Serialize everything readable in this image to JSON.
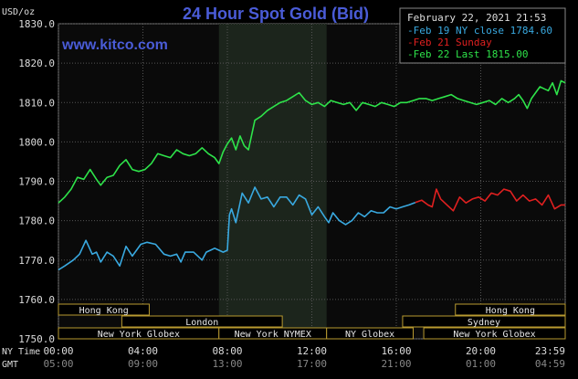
{
  "chart_data": {
    "type": "line",
    "title": "24 Hour Spot Gold (Bid)",
    "date_time": "February 22, 2021 21:53",
    "website": "www.kitco.com",
    "y_unit": "USD/oz",
    "ylim": [
      1750,
      1830
    ],
    "y_ticks": [
      "1830.0",
      "1820.0",
      "1810.0",
      "1800.0",
      "1790.0",
      "1780.0",
      "1770.0",
      "1760.0",
      "1750.0"
    ],
    "x_ticks_ny": [
      "00:00",
      "04:00",
      "08:00",
      "12:00",
      "16:00",
      "20:00",
      "23:59"
    ],
    "x_ticks_gmt": [
      "05:00",
      "09:00",
      "13:00",
      "17:00",
      "21:00",
      "01:00",
      "04:59"
    ],
    "x_row_labels": {
      "ny": "NY Time",
      "gmt": "GMT"
    },
    "grid": true,
    "highlight_hours": [
      7.6,
      12.7
    ],
    "legend_placement": "top-right",
    "legend": [
      {
        "name": "Feb 19 NY close 1784.60",
        "color": "#39a9e0"
      },
      {
        "name": "Feb 21 Sunday",
        "color": "#e02020"
      },
      {
        "name": "Feb 22 Last 1815.00",
        "color": "#2ee34a"
      }
    ],
    "market_sessions": [
      {
        "name": "Hong Kong",
        "row": 0,
        "start": 0.0,
        "end": 4.3
      },
      {
        "name": "Hong Kong",
        "row": 0,
        "start": 18.8,
        "end": 24.0
      },
      {
        "name": "London",
        "row": 1,
        "start": 3.0,
        "end": 10.6
      },
      {
        "name": "Sydney",
        "row": 1,
        "start": 16.3,
        "end": 24.0
      },
      {
        "name": "New York Globex",
        "row": 2,
        "start": 0.0,
        "end": 7.6
      },
      {
        "name": "New York NYMEX",
        "row": 2,
        "start": 7.6,
        "end": 12.7
      },
      {
        "name": "NY Globex",
        "row": 2,
        "start": 12.7,
        "end": 16.8
      },
      {
        "name": "New York Globex",
        "row": 2,
        "start": 17.3,
        "end": 24.0
      }
    ],
    "series": [
      {
        "name": "Feb 19 NY close 1784.60",
        "color": "#39a9e0",
        "x": [
          0.0,
          0.3,
          0.7,
          1.0,
          1.3,
          1.6,
          1.8,
          2.0,
          2.3,
          2.6,
          2.9,
          3.2,
          3.5,
          3.9,
          4.2,
          4.6,
          5.0,
          5.3,
          5.6,
          5.8,
          6.0,
          6.4,
          6.8,
          7.0,
          7.2,
          7.4,
          7.6,
          7.8,
          8.0,
          8.1,
          8.2,
          8.4,
          8.7,
          9.0,
          9.3,
          9.6,
          9.9,
          10.2,
          10.5,
          10.8,
          11.1,
          11.4,
          11.7,
          12.0,
          12.3,
          12.6,
          12.8,
          13.0,
          13.3,
          13.6,
          13.9,
          14.2,
          14.5,
          14.8,
          15.1,
          15.4,
          15.7,
          16.0,
          16.3,
          16.6,
          16.9
        ],
        "values": [
          1767.5,
          1768.5,
          1770.0,
          1771.5,
          1775.0,
          1771.5,
          1772.0,
          1769.5,
          1772.0,
          1771.0,
          1768.5,
          1773.5,
          1771.0,
          1774.0,
          1774.5,
          1774.0,
          1771.5,
          1771.0,
          1771.5,
          1769.5,
          1772.0,
          1772.0,
          1770.0,
          1772.0,
          1772.5,
          1773.0,
          1772.5,
          1772.0,
          1772.5,
          1781.5,
          1783.0,
          1779.5,
          1787.0,
          1784.5,
          1788.5,
          1785.5,
          1786.0,
          1783.5,
          1786.0,
          1786.0,
          1784.0,
          1786.5,
          1785.5,
          1781.5,
          1783.5,
          1781.0,
          1779.5,
          1782.0,
          1780.0,
          1779.0,
          1780.0,
          1782.0,
          1781.0,
          1782.5,
          1782.0,
          1782.0,
          1783.5,
          1783.0,
          1783.5,
          1784.0,
          1784.6
        ]
      },
      {
        "name": "Feb 21 Sunday",
        "color": "#e02020",
        "x": [
          16.9,
          17.2,
          17.5,
          17.7,
          17.9,
          18.1,
          18.4,
          18.7,
          19.0,
          19.3,
          19.6,
          19.9,
          20.2,
          20.5,
          20.8,
          21.1,
          21.4,
          21.7,
          22.0,
          22.3,
          22.6,
          22.9,
          23.2,
          23.5,
          23.8,
          24.0
        ],
        "values": [
          1784.6,
          1785.2,
          1784.0,
          1783.5,
          1788.0,
          1785.5,
          1784.0,
          1782.5,
          1786.0,
          1784.5,
          1785.5,
          1786.0,
          1785.0,
          1787.0,
          1786.5,
          1788.0,
          1787.5,
          1785.0,
          1786.5,
          1785.0,
          1785.5,
          1784.0,
          1786.5,
          1783.0,
          1784.0,
          1784.0
        ]
      },
      {
        "name": "Feb 22 Last 1815.00",
        "color": "#2ee34a",
        "x": [
          0.0,
          0.3,
          0.6,
          0.9,
          1.2,
          1.5,
          1.8,
          2.0,
          2.3,
          2.6,
          2.9,
          3.2,
          3.5,
          3.8,
          4.1,
          4.4,
          4.7,
          5.0,
          5.3,
          5.6,
          5.9,
          6.2,
          6.5,
          6.8,
          7.1,
          7.4,
          7.6,
          7.8,
          8.0,
          8.2,
          8.4,
          8.6,
          8.8,
          9.0,
          9.3,
          9.6,
          9.9,
          10.2,
          10.5,
          10.8,
          11.1,
          11.4,
          11.7,
          12.0,
          12.3,
          12.6,
          12.9,
          13.2,
          13.5,
          13.8,
          14.1,
          14.4,
          14.7,
          15.0,
          15.3,
          15.6,
          15.9,
          16.2,
          16.5,
          16.8,
          17.1,
          17.4,
          17.7,
          18.0,
          18.3,
          18.6,
          18.9,
          19.2,
          19.5,
          19.8,
          20.1,
          20.4,
          20.7,
          21.0,
          21.3,
          21.6,
          21.8,
          22.0,
          22.2,
          22.4,
          22.6,
          22.8,
          23.0,
          23.2,
          23.4,
          23.6,
          23.8,
          24.0
        ],
        "values": [
          1784.5,
          1786.0,
          1788.0,
          1791.0,
          1790.5,
          1793.0,
          1790.5,
          1789.0,
          1791.0,
          1791.5,
          1794.0,
          1795.5,
          1793.0,
          1792.5,
          1793.0,
          1794.5,
          1797.0,
          1796.5,
          1796.0,
          1798.0,
          1797.0,
          1796.5,
          1797.0,
          1798.5,
          1797.0,
          1796.0,
          1794.5,
          1797.5,
          1799.5,
          1801.0,
          1798.0,
          1801.5,
          1799.0,
          1798.0,
          1805.5,
          1806.5,
          1808.0,
          1809.0,
          1810.0,
          1810.5,
          1811.5,
          1812.5,
          1810.5,
          1809.5,
          1810.0,
          1809.0,
          1810.5,
          1810.0,
          1809.5,
          1810.0,
          1808.0,
          1810.0,
          1809.5,
          1809.0,
          1810.0,
          1809.5,
          1809.0,
          1810.0,
          1810.0,
          1810.5,
          1811.0,
          1811.0,
          1810.5,
          1811.0,
          1811.5,
          1812.0,
          1811.0,
          1810.5,
          1810.0,
          1809.5,
          1810.0,
          1810.5,
          1809.5,
          1811.0,
          1810.0,
          1811.0,
          1812.0,
          1810.5,
          1808.5,
          1811.0,
          1812.5,
          1814.0,
          1813.5,
          1813.0,
          1815.0,
          1812.0,
          1815.5,
          1815.0
        ]
      }
    ]
  }
}
